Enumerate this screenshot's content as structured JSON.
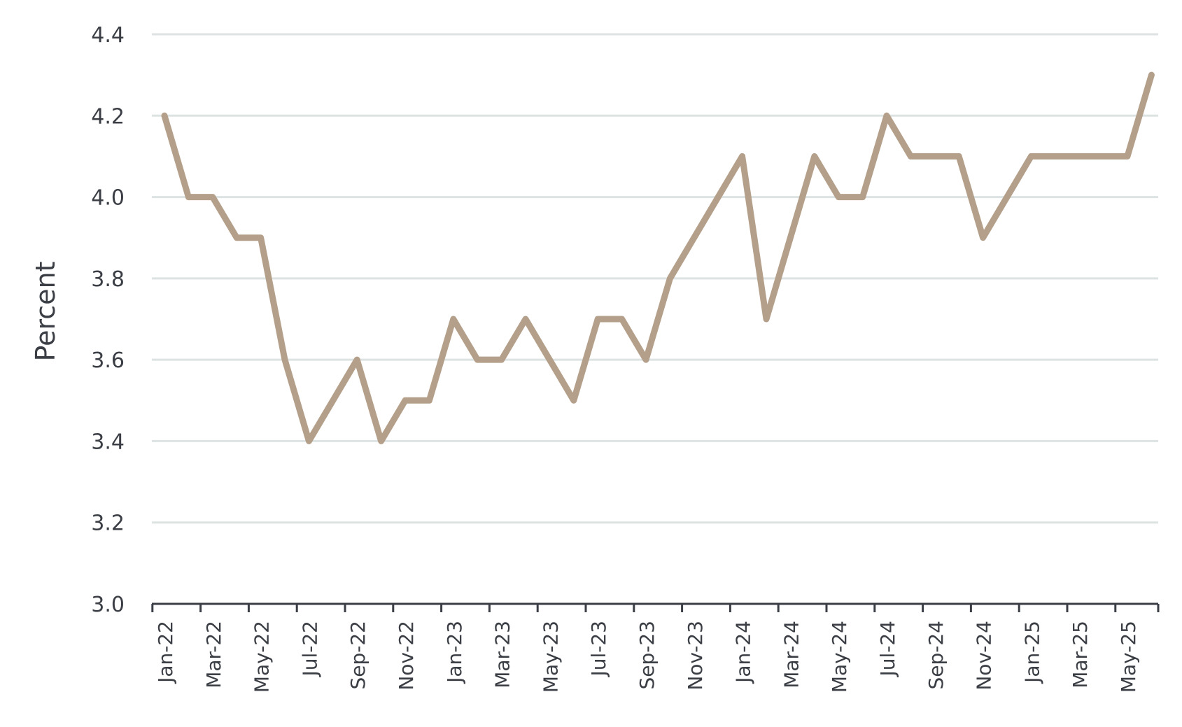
{
  "chart_data": {
    "type": "line",
    "title": "",
    "xlabel": "",
    "ylabel": "Percent",
    "ylim": [
      3.0,
      4.4
    ],
    "yticks": [
      "3.0",
      "3.2",
      "3.4",
      "3.6",
      "3.8",
      "4.0",
      "4.2",
      "4.4"
    ],
    "grid": true,
    "x": [
      "Jan-22",
      "Feb-22",
      "Mar-22",
      "Apr-22",
      "May-22",
      "Jun-22",
      "Jul-22",
      "Aug-22",
      "Sep-22",
      "Oct-22",
      "Nov-22",
      "Dec-22",
      "Jan-23",
      "Feb-23",
      "Mar-23",
      "Apr-23",
      "May-23",
      "Jun-23",
      "Jul-23",
      "Aug-23",
      "Sep-23",
      "Oct-23",
      "Nov-23",
      "Dec-23",
      "Jan-24",
      "Feb-24",
      "Mar-24",
      "Apr-24",
      "May-24",
      "Jun-24",
      "Jul-24",
      "Aug-24",
      "Sep-24",
      "Oct-24",
      "Nov-24",
      "Dec-24",
      "Jan-25",
      "Feb-25",
      "Mar-25",
      "Apr-25",
      "May-25",
      "Jun-25"
    ],
    "xtick_labels": [
      "Jan-22",
      "Mar-22",
      "May-22",
      "Jul-22",
      "Sep-22",
      "Nov-22",
      "Jan-23",
      "Mar-23",
      "May-23",
      "Jul-23",
      "Sep-23",
      "Nov-23",
      "Jan-24",
      "Mar-24",
      "May-24",
      "Jul-24",
      "Sep-24",
      "Nov-24",
      "Jan-25",
      "Mar-25",
      "May-25"
    ],
    "series": [
      {
        "color": "#b4a08a",
        "values": [
          4.2,
          4.0,
          4.0,
          3.9,
          3.9,
          3.6,
          3.4,
          3.5,
          3.6,
          3.4,
          3.5,
          3.5,
          3.7,
          3.6,
          3.6,
          3.7,
          3.6,
          3.5,
          3.7,
          3.7,
          3.6,
          3.8,
          3.9,
          4.0,
          4.1,
          3.7,
          3.9,
          4.1,
          4.0,
          4.0,
          4.2,
          4.1,
          4.1,
          4.1,
          3.9,
          4.0,
          4.1,
          4.1,
          4.1,
          4.1,
          4.1,
          4.3
        ]
      }
    ]
  }
}
